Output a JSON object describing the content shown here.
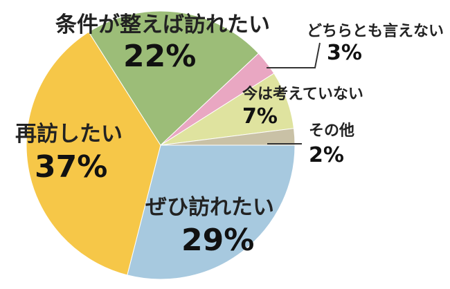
{
  "chart_data": {
    "type": "pie",
    "start_angle_deg": 0,
    "direction": "clockwise",
    "slices": [
      {
        "label": "ぜひ訪れたい",
        "value": 29,
        "value_label": "29%",
        "color": "#a7c9df"
      },
      {
        "label": "再訪したい",
        "value": 37,
        "value_label": "37%",
        "color": "#f6c748"
      },
      {
        "label": "条件が整えば訪れたい",
        "value": 22,
        "value_label": "22%",
        "color": "#9cbd78"
      },
      {
        "label": "どちらとも言えない",
        "value": 3,
        "value_label": "3%",
        "color": "#e9a7c2"
      },
      {
        "label": "今は考えていない",
        "value": 7,
        "value_label": "7%",
        "color": "#dfe39f"
      },
      {
        "label": "その他",
        "value": 2,
        "value_label": "2%",
        "color": "#c9c1a6"
      }
    ]
  }
}
